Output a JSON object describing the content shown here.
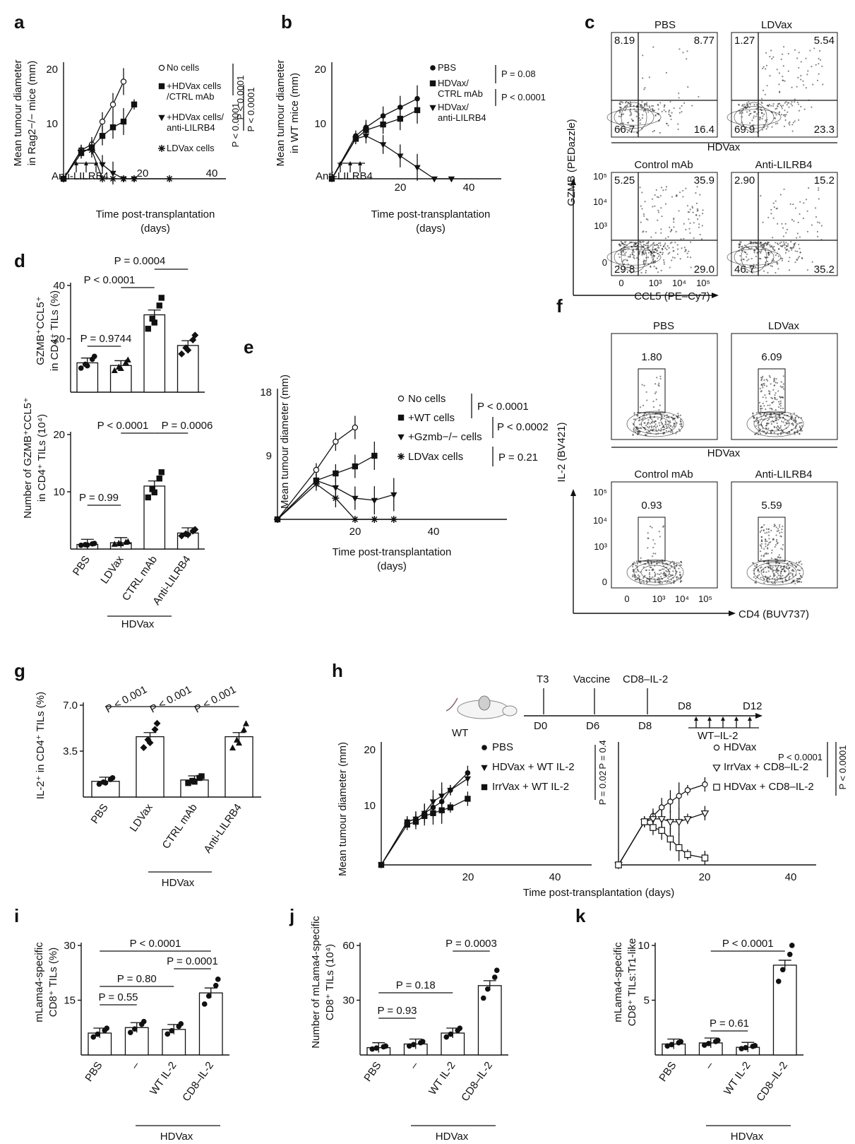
{
  "panels": {
    "a": {
      "label": "a",
      "ylabel": [
        "Mean tumour diameter",
        "in Rag2−/− mice (mm)"
      ],
      "xlabel": [
        "Time post-transplantation",
        "(days)"
      ],
      "treatment": "Anti-LILRB4",
      "legend": [
        "No cells",
        "+HDVax cells",
        "/CTRL mAb",
        "+HDVax cells/",
        "anti-LILRB4",
        "LDVax cells"
      ],
      "pvalues": [
        "P < 0.0001",
        "P < 0.0001",
        "P < 0.0001"
      ],
      "chart_data": {
        "type": "line",
        "x_ticks": [
          20,
          40
        ],
        "y_ticks": [
          10,
          20
        ],
        "xlim": [
          0,
          50
        ],
        "ylim": [
          0,
          22
        ],
        "series": [
          {
            "name": "No cells",
            "x": [
              0,
              5,
              8,
              11,
              14,
              17
            ],
            "y": [
              0,
              5,
              6,
              10,
              13,
              17
            ],
            "marker": "open-circle"
          },
          {
            "name": "+HDVax cells /CTRL mAb",
            "x": [
              0,
              5,
              8,
              11,
              14,
              17,
              20
            ],
            "y": [
              0,
              4.5,
              5.5,
              7.5,
              9,
              10,
              13
            ],
            "marker": "square"
          },
          {
            "name": "+HDVax cells/ anti-LILRB4",
            "x": [
              0,
              5,
              8,
              11,
              14,
              17,
              20
            ],
            "y": [
              0,
              4.5,
              5.5,
              2.5,
              1,
              0,
              0
            ],
            "marker": "triangle-down"
          },
          {
            "name": "LDVax cells",
            "x": [
              0,
              5,
              8,
              11,
              14,
              17,
              20,
              30
            ],
            "y": [
              0,
              5,
              5,
              0,
              0,
              0,
              0,
              0
            ],
            "marker": "asterisk"
          }
        ]
      }
    },
    "b": {
      "label": "b",
      "ylabel": [
        "Mean tumour diameter",
        "in WT mice (mm)"
      ],
      "xlabel": [
        "Time post-transplantation",
        "(days)"
      ],
      "treatment": "Anti-LILRB4",
      "legend": [
        "PBS",
        "HDVax/",
        "CTRL mAb",
        "HDVax/",
        "anti-LILRB4"
      ],
      "pvalues": [
        "P = 0.08",
        "P < 0.0001"
      ],
      "chart_data": {
        "type": "line",
        "x_ticks": [
          20,
          40
        ],
        "y_ticks": [
          10,
          20
        ],
        "xlim": [
          0,
          50
        ],
        "ylim": [
          0,
          22
        ],
        "series": [
          {
            "name": "PBS",
            "x": [
              0,
              7,
              10,
              15,
              20,
              25
            ],
            "y": [
              0,
              7.5,
              9,
              11,
              12.5,
              14
            ],
            "marker": "circle"
          },
          {
            "name": "HDVax/ CTRL mAb",
            "x": [
              0,
              7,
              10,
              15,
              20,
              25
            ],
            "y": [
              0,
              7,
              8.5,
              9.5,
              10.5,
              12
            ],
            "marker": "square"
          },
          {
            "name": "HDVax/ anti-LILRB4",
            "x": [
              0,
              7,
              10,
              15,
              20,
              25,
              30,
              35
            ],
            "y": [
              0,
              7,
              7.5,
              6,
              4,
              2,
              0,
              0
            ],
            "marker": "triangle-down"
          }
        ]
      }
    },
    "c": {
      "label": "c",
      "title_pbs": "PBS",
      "title_ldvax": "LDVax",
      "group": "HDVax",
      "sub_control": "Control mAb",
      "sub_anti": "Anti-LILRB4",
      "ylabel": "GZMB (PEDazzle)",
      "xlabel": "CCL5 (PE–Cy7)",
      "y_ticks": [
        "10⁵",
        "10⁴",
        "10³",
        "0"
      ],
      "x_ticks": [
        "0",
        "10³",
        "10⁴",
        "10⁵"
      ],
      "quadrants": {
        "pbs": [
          "8.19",
          "8.77",
          "66.7",
          "16.4"
        ],
        "ldvax": [
          "1.27",
          "5.54",
          "69.9",
          "23.3"
        ],
        "control": [
          "5.25",
          "35.9",
          "29.8",
          "29.0"
        ],
        "anti": [
          "2.90",
          "15.2",
          "46.7",
          "35.2"
        ]
      }
    },
    "d": {
      "label": "d",
      "top_ylabel": [
        "GZMB⁺CCL5⁺",
        "in CD4⁺ TILs (%)"
      ],
      "bottom_ylabel": [
        "Number of GZMB⁺CCL5⁺",
        "in CD4⁺ TILs (10⁴)"
      ],
      "categories": [
        "PBS",
        "LDVax",
        "CTRL mAb",
        "Anti-LILRB4"
      ],
      "group": "HDVax",
      "top_p": [
        "P = 0.9744",
        "P < 0.0001",
        "P = 0.0004"
      ],
      "bottom_p": [
        "P = 0.99",
        "P < 0.0001",
        "P = 0.0006"
      ],
      "chart_data": [
        {
          "type": "bar",
          "categories": [
            "PBS",
            "LDVax",
            "CTRL mAb",
            "Anti-LILRB4"
          ],
          "values": [
            11,
            10,
            29,
            17.5
          ],
          "ylim": [
            0,
            40
          ],
          "y_ticks": [
            20,
            40
          ]
        },
        {
          "type": "bar",
          "categories": [
            "PBS",
            "LDVax",
            "CTRL mAb",
            "Anti-LILRB4"
          ],
          "values": [
            0.8,
            1.1,
            11,
            2.8
          ],
          "ylim": [
            0,
            20
          ],
          "y_ticks": [
            10,
            20
          ]
        }
      ]
    },
    "e": {
      "label": "e",
      "ylabel": "Mean tumour diameter (mm)",
      "xlabel": [
        "Time post-transplantation",
        "(days)"
      ],
      "legend": [
        "No cells",
        "+WT cells",
        "+Gzmb−/− cells",
        "LDVax cells"
      ],
      "pvalues": [
        "P < 0.0001",
        "P < 0.0002",
        "P = 0.21"
      ],
      "chart_data": {
        "type": "line",
        "x_ticks": [
          20,
          40
        ],
        "y_ticks": [
          9,
          18
        ],
        "xlim": [
          0,
          65
        ],
        "ylim": [
          0,
          18
        ],
        "series": [
          {
            "name": "No cells",
            "x": [
              0,
              10,
              15,
              20
            ],
            "y": [
              0,
              7,
              11,
              13
            ],
            "marker": "open-circle"
          },
          {
            "name": "+WT cells",
            "x": [
              0,
              10,
              15,
              20,
              25
            ],
            "y": [
              0,
              5.5,
              6.5,
              7.5,
              9
            ],
            "marker": "square"
          },
          {
            "name": "+Gzmb−/− cells",
            "x": [
              0,
              10,
              15,
              20,
              25,
              30
            ],
            "y": [
              0,
              5.5,
              4.5,
              3,
              2.7,
              3.5
            ],
            "marker": "triangle-down"
          },
          {
            "name": "LDVax cells",
            "x": [
              0,
              10,
              15,
              20,
              25,
              30
            ],
            "y": [
              0,
              5,
              3,
              0,
              0,
              0
            ],
            "marker": "asterisk"
          }
        ]
      }
    },
    "f": {
      "label": "f",
      "title_pbs": "PBS",
      "title_ldvax": "LDVax",
      "group": "HDVax",
      "sub_control": "Control mAb",
      "sub_anti": "Anti-LILRB4",
      "ylabel": "IL-2 (BV421)",
      "xlabel": "CD4 (BUV737)",
      "y_ticks": [
        "10⁵",
        "10⁴",
        "10³",
        "0"
      ],
      "x_ticks": [
        "0",
        "10³",
        "10⁴",
        "10⁵"
      ],
      "gates": {
        "pbs": "1.80",
        "ldvax": "6.09",
        "control": "0.93",
        "anti": "5.59"
      }
    },
    "g": {
      "label": "g",
      "ylabel": "IL-2⁺ in CD4⁺ TILs (%)",
      "categories": [
        "PBS",
        "LDVax",
        "CTRL mAb",
        "Anti-LILRB4"
      ],
      "group": "HDVax",
      "pvalues": [
        "P < 0.001",
        "P < 0.001",
        "P < 0.001"
      ],
      "chart_data": {
        "type": "bar",
        "categories": [
          "PBS",
          "LDVax",
          "CTRL mAb",
          "Anti-LILRB4"
        ],
        "values": [
          1.2,
          4.6,
          1.3,
          4.6
        ],
        "ylim": [
          0,
          7
        ],
        "y_ticks": [
          3.5,
          7.0
        ]
      }
    },
    "h": {
      "label": "h",
      "timeline": [
        "T3",
        "D0",
        "Vaccine",
        "D6",
        "CD8–IL-2",
        "D8",
        "D8",
        "D12",
        "WT–IL-2",
        "WT"
      ],
      "ylabel": "Mean tumour diameter (mm)",
      "xlabel": "Time post-transplantation (days)",
      "legend_left": [
        "PBS",
        "HDVax + WT IL-2",
        "IrrVax + WT IL-2"
      ],
      "legend_right": [
        "HDVax",
        "IrrVax + CD8–IL-2",
        "HDVax + CD8–IL-2"
      ],
      "pvalues_left": [
        "P = 0.02",
        "P = 0.4"
      ],
      "pvalues_right": [
        "P < 0.0001",
        "P < 0.0001"
      ],
      "chart_data": [
        {
          "type": "line",
          "x_ticks": [
            20,
            40
          ],
          "y_ticks": [
            10,
            20
          ],
          "xlim": [
            0,
            50
          ],
          "ylim": [
            0,
            22
          ],
          "series": [
            {
              "name": "PBS",
              "x": [
                0,
                6,
                8,
                10,
                12,
                14,
                16,
                20
              ],
              "y": [
                0,
                7.5,
                8,
                9,
                10,
                11,
                13,
                16
              ],
              "marker": "circle"
            },
            {
              "name": "HDVax + WT IL-2",
              "x": [
                0,
                6,
                8,
                10,
                12,
                14,
                16,
                20
              ],
              "y": [
                0,
                7.5,
                8,
                9,
                11,
                12,
                13,
                15
              ],
              "marker": "triangle-down"
            },
            {
              "name": "IrrVax + WT IL-2",
              "x": [
                0,
                6,
                8,
                10,
                12,
                14,
                16,
                20
              ],
              "y": [
                0,
                7,
                7.5,
                8.5,
                9,
                9.5,
                10,
                11.5
              ],
              "marker": "square"
            }
          ]
        },
        {
          "type": "line",
          "x_ticks": [
            20,
            40
          ],
          "y_ticks": [
            10,
            20
          ],
          "xlim": [
            0,
            50
          ],
          "ylim": [
            0,
            22
          ],
          "series": [
            {
              "name": "HDVax",
              "x": [
                0,
                6,
                8,
                10,
                12,
                14,
                16,
                20
              ],
              "y": [
                0,
                7.5,
                8.5,
                10,
                11,
                12,
                13,
                14
              ],
              "marker": "open-circle"
            },
            {
              "name": "IrrVax + CD8–IL-2",
              "x": [
                0,
                6,
                8,
                10,
                12,
                14,
                16,
                20
              ],
              "y": [
                0,
                7.5,
                8,
                8,
                7.5,
                7.5,
                8,
                9
              ],
              "marker": "open-triangle-down"
            },
            {
              "name": "HDVax + CD8–IL-2",
              "x": [
                0,
                6,
                8,
                10,
                12,
                14,
                16,
                20
              ],
              "y": [
                0,
                7.5,
                6.5,
                6,
                4.5,
                3,
                1.8,
                1.2
              ],
              "marker": "open-square"
            }
          ]
        }
      ]
    },
    "i": {
      "label": "i",
      "ylabel": [
        "mLama4-specific",
        "CD8⁺ TILs (%)"
      ],
      "categories": [
        "PBS",
        "–",
        "WT IL-2",
        "CD8–IL-2"
      ],
      "group": "HDVax",
      "pvalues": [
        "P < 0.0001",
        "P = 0.0001",
        "P = 0.80",
        "P = 0.55"
      ],
      "chart_data": {
        "type": "bar",
        "categories": [
          "PBS",
          "–",
          "WT IL-2",
          "CD8–IL-2"
        ],
        "values": [
          6,
          7.5,
          7,
          17
        ],
        "ylim": [
          0,
          30
        ],
        "y_ticks": [
          15,
          30
        ]
      }
    },
    "j": {
      "label": "j",
      "ylabel": [
        "Number of mLama4-specific",
        "CD8⁺ TILs (10⁴)"
      ],
      "categories": [
        "PBS",
        "–",
        "WT IL-2",
        "CD8–IL-2"
      ],
      "group": "HDVax",
      "pvalues": [
        "P = 0.0003",
        "P = 0.18",
        "P = 0.93"
      ],
      "chart_data": {
        "type": "bar",
        "categories": [
          "PBS",
          "–",
          "WT IL-2",
          "CD8–IL-2"
        ],
        "values": [
          4,
          6,
          12,
          38
        ],
        "ylim": [
          0,
          60
        ],
        "y_ticks": [
          30,
          60
        ]
      }
    },
    "k": {
      "label": "k",
      "ylabel": [
        "mLama4-specific",
        "CD8⁺ TILs:Tr1-like"
      ],
      "categories": [
        "PBS",
        "–",
        "WT IL-2",
        "CD8–IL-2"
      ],
      "group": "HDVax",
      "pvalues": [
        "P < 0.0001",
        "P = 0.61"
      ],
      "chart_data": {
        "type": "bar",
        "categories": [
          "PBS",
          "–",
          "WT IL-2",
          "CD8–IL-2"
        ],
        "values": [
          1,
          1.1,
          0.7,
          8.2
        ],
        "ylim": [
          0,
          10
        ],
        "y_ticks": [
          5,
          10
        ]
      }
    }
  }
}
